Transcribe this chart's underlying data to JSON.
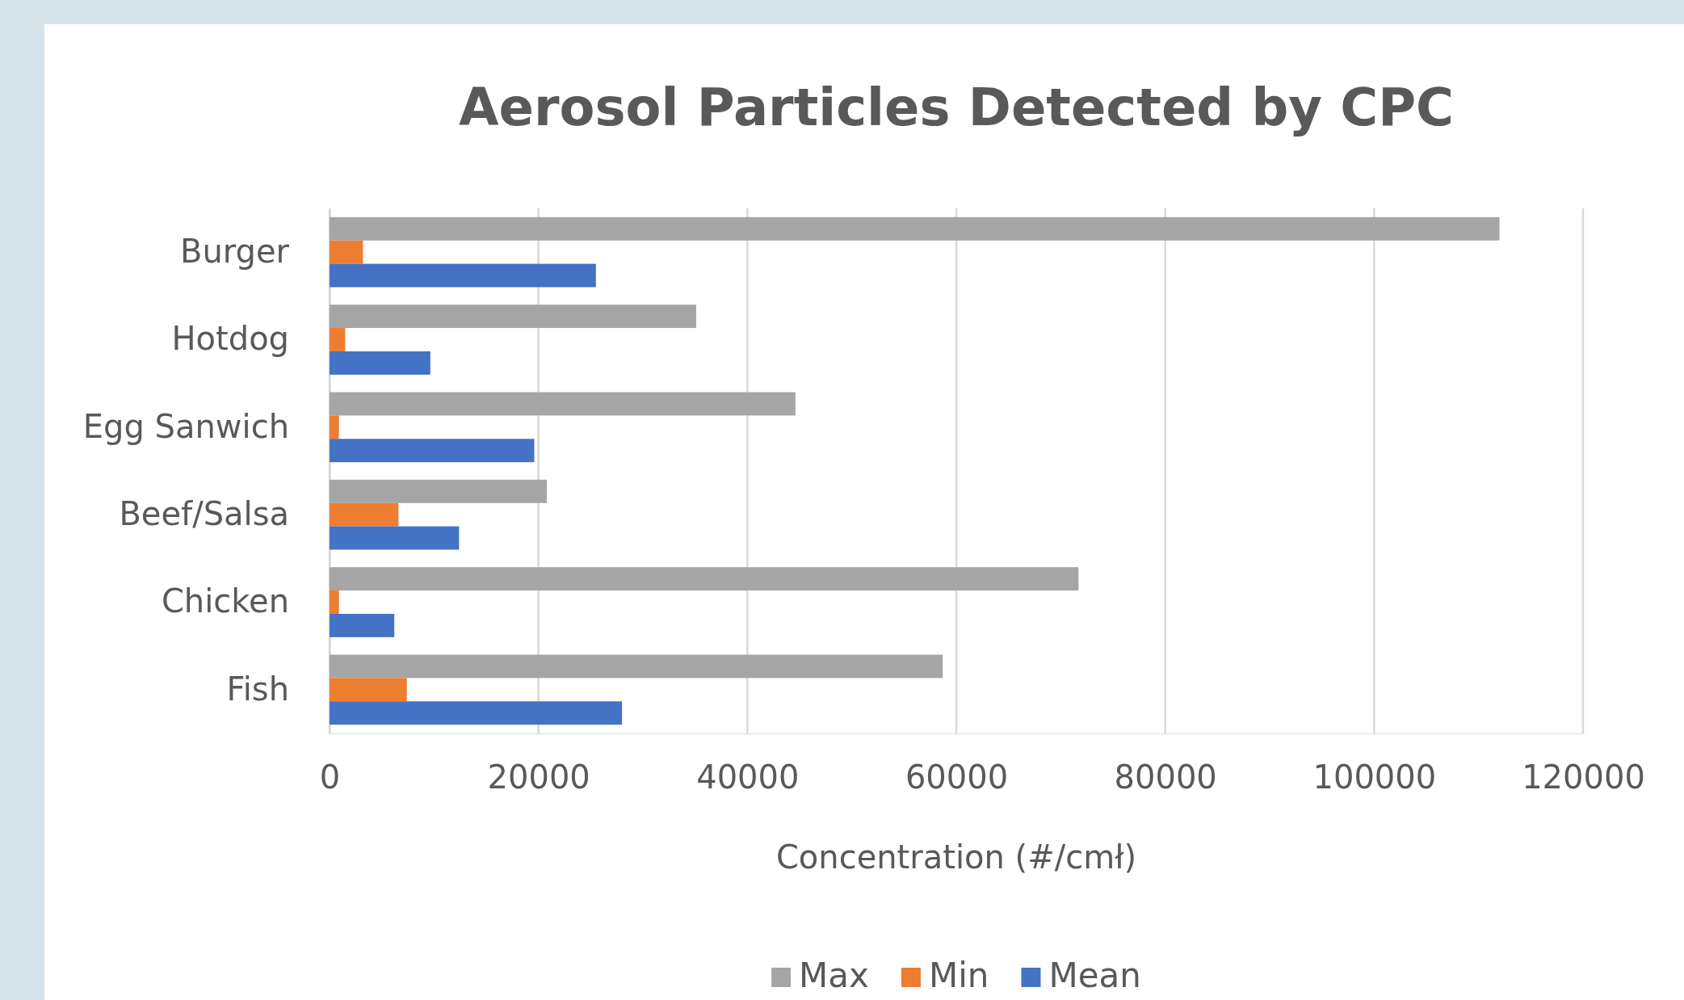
{
  "chart_data": {
    "type": "bar",
    "orientation": "horizontal",
    "title": "Aerosol Particles Detected by CPC",
    "xlabel": "Concentration (#/cmł)",
    "categories": [
      "Burger",
      "Hotdog",
      "Egg Sanwich",
      "Beef/Salsa",
      "Chicken",
      "Fish"
    ],
    "series": [
      {
        "name": "Max",
        "color": "#a5a5a5",
        "values": [
          112000,
          35100,
          44600,
          20800,
          71700,
          58700
        ]
      },
      {
        "name": "Min",
        "color": "#ed7d31",
        "values": [
          3200,
          1500,
          900,
          6600,
          900,
          7400
        ]
      },
      {
        "name": "Mean",
        "color": "#4472c4",
        "values": [
          25500,
          9650,
          19600,
          12400,
          6200,
          28000
        ]
      }
    ],
    "xlim": [
      0,
      120000
    ],
    "xticks": [
      0,
      20000,
      40000,
      60000,
      80000,
      100000,
      120000
    ],
    "grid": "x",
    "legend": "bottom"
  }
}
